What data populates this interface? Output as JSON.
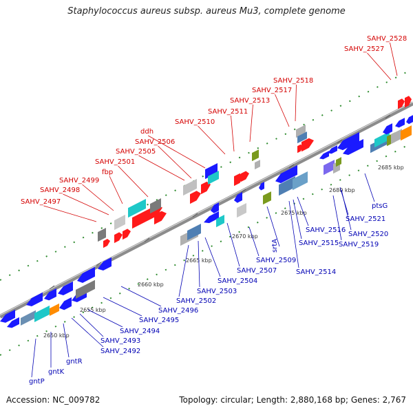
{
  "title": "Staphylococcus aureus subsp. aureus Mu3, complete genome",
  "footer": {
    "accession": "Accession: NC_009782",
    "summary": "Topology: circular; Length: 2,880,168 bp; Genes: 2,767"
  },
  "colors": {
    "forward_label": "#d40000",
    "reverse_label": "#0000b4",
    "backbone": "#8c8c8c",
    "tick": "#2e8b2e"
  },
  "kbp_ticks": [
    "2650 kbp",
    "2655 kbp",
    "2660 kbp",
    "2665 kbp",
    "2670 kbp",
    "2675 kbp",
    "2680 kbp",
    "2685 kbp"
  ],
  "forward_genes": [
    "SAHV_2497",
    "SAHV_2498",
    "SAHV_2499",
    "fbp",
    "SAHV_2501",
    "SAHV_2505",
    "SAHV_2506",
    "ddh",
    "SAHV_2510",
    "SAHV_2511",
    "SAHV_2513",
    "SAHV_2517",
    "SAHV_2518",
    "SAHV_2527",
    "SAHV_2528"
  ],
  "reverse_genes": [
    "gntP",
    "gntK",
    "gntR",
    "SAHV_2492",
    "SAHV_2493",
    "SAHV_2494",
    "SAHV_2495",
    "SAHV_2496",
    "SAHV_2502",
    "SAHV_2503",
    "SAHV_2504",
    "SAHV_2507",
    "SAHV_2509",
    "srtA",
    "SAHV_2514",
    "SAHV_2515",
    "SAHV_2516",
    "SAHV_2519",
    "SAHV_2520",
    "SAHV_2521",
    "ptsG"
  ]
}
